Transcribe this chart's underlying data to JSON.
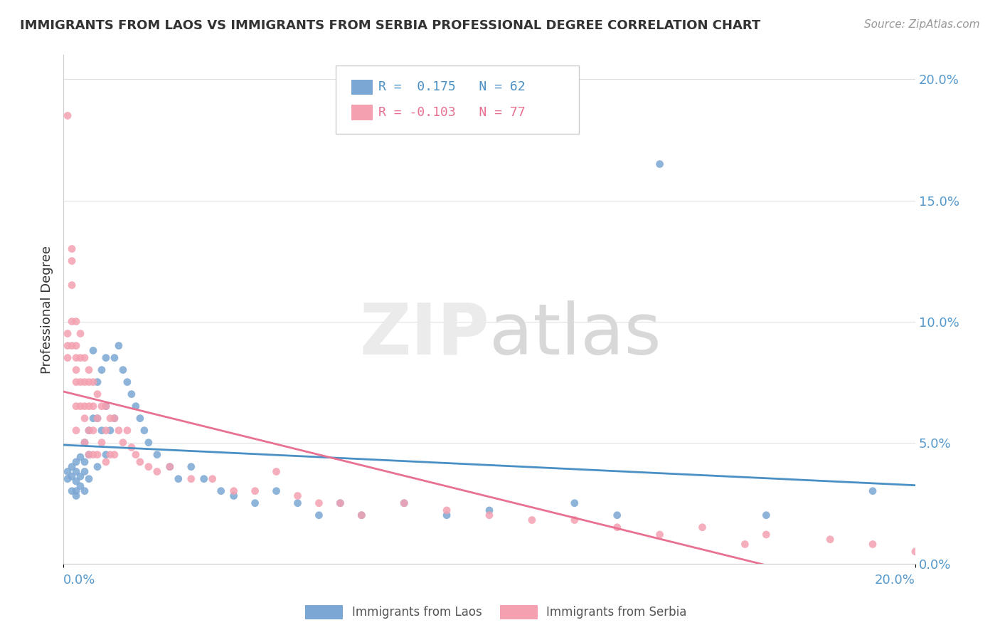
{
  "title": "IMMIGRANTS FROM LAOS VS IMMIGRANTS FROM SERBIA PROFESSIONAL DEGREE CORRELATION CHART",
  "source": "Source: ZipAtlas.com",
  "ylabel": "Professional Degree",
  "laos_R": 0.175,
  "laos_N": 62,
  "serbia_R": -0.103,
  "serbia_N": 77,
  "laos_color": "#7BA7D4",
  "serbia_color": "#F4A0B0",
  "laos_trend_color": "#4A90C4",
  "serbia_trend_color": "#E87090",
  "background_color": "#ffffff",
  "grid_color": "#e0e0e0",
  "right_yticks": [
    "20.0%",
    "15.0%",
    "10.0%",
    "5.0%",
    "0.0%"
  ],
  "right_ytick_vals": [
    0.2,
    0.15,
    0.1,
    0.05,
    0.0
  ],
  "xlim": [
    0.0,
    0.2
  ],
  "ylim": [
    0.0,
    0.21
  ],
  "laos_x": [
    0.001,
    0.001,
    0.002,
    0.002,
    0.002,
    0.003,
    0.003,
    0.003,
    0.003,
    0.003,
    0.004,
    0.004,
    0.004,
    0.005,
    0.005,
    0.005,
    0.005,
    0.006,
    0.006,
    0.006,
    0.007,
    0.007,
    0.008,
    0.008,
    0.008,
    0.009,
    0.009,
    0.01,
    0.01,
    0.01,
    0.011,
    0.012,
    0.012,
    0.013,
    0.014,
    0.015,
    0.016,
    0.017,
    0.018,
    0.019,
    0.02,
    0.022,
    0.025,
    0.027,
    0.03,
    0.033,
    0.037,
    0.04,
    0.045,
    0.05,
    0.055,
    0.06,
    0.065,
    0.07,
    0.08,
    0.09,
    0.1,
    0.12,
    0.13,
    0.14,
    0.165,
    0.19
  ],
  "laos_y": [
    0.038,
    0.035,
    0.04,
    0.036,
    0.03,
    0.042,
    0.038,
    0.034,
    0.03,
    0.028,
    0.044,
    0.036,
    0.032,
    0.05,
    0.042,
    0.038,
    0.03,
    0.055,
    0.045,
    0.035,
    0.088,
    0.06,
    0.075,
    0.06,
    0.04,
    0.08,
    0.055,
    0.085,
    0.065,
    0.045,
    0.055,
    0.085,
    0.06,
    0.09,
    0.08,
    0.075,
    0.07,
    0.065,
    0.06,
    0.055,
    0.05,
    0.045,
    0.04,
    0.035,
    0.04,
    0.035,
    0.03,
    0.028,
    0.025,
    0.03,
    0.025,
    0.02,
    0.025,
    0.02,
    0.025,
    0.02,
    0.022,
    0.025,
    0.02,
    0.165,
    0.02,
    0.03
  ],
  "serbia_x": [
    0.001,
    0.001,
    0.001,
    0.001,
    0.002,
    0.002,
    0.002,
    0.002,
    0.002,
    0.003,
    0.003,
    0.003,
    0.003,
    0.003,
    0.003,
    0.003,
    0.004,
    0.004,
    0.004,
    0.004,
    0.005,
    0.005,
    0.005,
    0.005,
    0.005,
    0.006,
    0.006,
    0.006,
    0.006,
    0.006,
    0.007,
    0.007,
    0.007,
    0.007,
    0.008,
    0.008,
    0.008,
    0.009,
    0.009,
    0.01,
    0.01,
    0.01,
    0.011,
    0.011,
    0.012,
    0.012,
    0.013,
    0.014,
    0.015,
    0.016,
    0.017,
    0.018,
    0.02,
    0.022,
    0.025,
    0.03,
    0.035,
    0.04,
    0.045,
    0.05,
    0.055,
    0.06,
    0.065,
    0.07,
    0.08,
    0.09,
    0.1,
    0.11,
    0.13,
    0.15,
    0.165,
    0.18,
    0.19,
    0.2,
    0.12,
    0.14,
    0.16
  ],
  "serbia_y": [
    0.185,
    0.095,
    0.09,
    0.085,
    0.13,
    0.125,
    0.115,
    0.1,
    0.09,
    0.1,
    0.09,
    0.085,
    0.08,
    0.075,
    0.065,
    0.055,
    0.095,
    0.085,
    0.075,
    0.065,
    0.085,
    0.075,
    0.065,
    0.06,
    0.05,
    0.08,
    0.075,
    0.065,
    0.055,
    0.045,
    0.075,
    0.065,
    0.055,
    0.045,
    0.07,
    0.06,
    0.045,
    0.065,
    0.05,
    0.065,
    0.055,
    0.042,
    0.06,
    0.045,
    0.06,
    0.045,
    0.055,
    0.05,
    0.055,
    0.048,
    0.045,
    0.042,
    0.04,
    0.038,
    0.04,
    0.035,
    0.035,
    0.03,
    0.03,
    0.038,
    0.028,
    0.025,
    0.025,
    0.02,
    0.025,
    0.022,
    0.02,
    0.018,
    0.015,
    0.015,
    0.012,
    0.01,
    0.008,
    0.005,
    0.018,
    0.012,
    0.008
  ]
}
